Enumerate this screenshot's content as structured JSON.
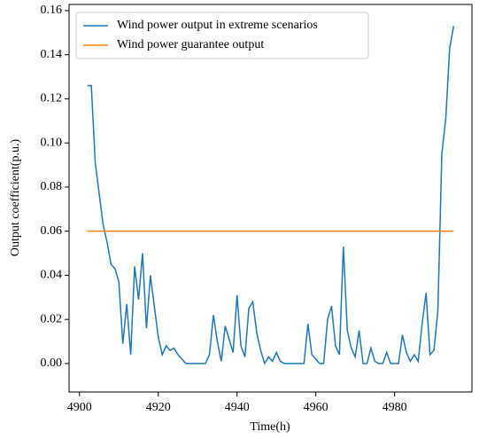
{
  "chart_data": {
    "type": "line",
    "xlabel": "Time(h)",
    "ylabel": "Output coefficient(p.u.)",
    "x": [
      4902,
      4903,
      4904,
      4905,
      4906,
      4907,
      4908,
      4909,
      4910,
      4911,
      4912,
      4913,
      4914,
      4915,
      4916,
      4917,
      4918,
      4919,
      4920,
      4921,
      4922,
      4923,
      4924,
      4925,
      4926,
      4927,
      4928,
      4929,
      4930,
      4931,
      4932,
      4933,
      4934,
      4935,
      4936,
      4937,
      4938,
      4939,
      4940,
      4941,
      4942,
      4943,
      4944,
      4945,
      4946,
      4947,
      4948,
      4949,
      4950,
      4951,
      4952,
      4953,
      4954,
      4955,
      4956,
      4957,
      4958,
      4959,
      4960,
      4961,
      4962,
      4963,
      4964,
      4965,
      4966,
      4967,
      4968,
      4969,
      4970,
      4971,
      4972,
      4973,
      4974,
      4975,
      4976,
      4977,
      4978,
      4979,
      4980,
      4981,
      4982,
      4983,
      4984,
      4985,
      4986,
      4987,
      4988,
      4989,
      4990,
      4991,
      4992,
      4993,
      4994,
      4995
    ],
    "series": [
      {
        "name": "Wind power output in extreme scenarios",
        "color": "#1f77b4",
        "values": [
          0.126,
          0.126,
          0.091,
          0.077,
          0.063,
          0.055,
          0.045,
          0.043,
          0.037,
          0.009,
          0.027,
          0.004,
          0.044,
          0.029,
          0.05,
          0.016,
          0.04,
          0.026,
          0.012,
          0.004,
          0.008,
          0.006,
          0.007,
          0.004,
          0.002,
          0,
          0,
          0,
          0,
          0,
          0,
          0.004,
          0.022,
          0.01,
          0.001,
          0.017,
          0.011,
          0.005,
          0.031,
          0.008,
          0.003,
          0.025,
          0.028,
          0.014,
          0.006,
          0,
          0.003,
          0.001,
          0.005,
          0.001,
          0,
          0,
          0,
          0,
          0,
          0,
          0.018,
          0.004,
          0.002,
          0,
          0,
          0.02,
          0.026,
          0.008,
          0.004,
          0.053,
          0.015,
          0.007,
          0.003,
          0.015,
          0,
          0,
          0.007,
          0.001,
          0,
          0,
          0.005,
          0,
          0,
          0,
          0.013,
          0.005,
          0.001,
          0.004,
          0.001,
          0.018,
          0.032,
          0.004,
          0.006,
          0.024,
          0.095,
          0.111,
          0.143,
          0.153
        ]
      },
      {
        "name": "Wind power guarantee output",
        "color": "#ff7f0e",
        "values": [
          0.06,
          0.06,
          0.06,
          0.06,
          0.06,
          0.06,
          0.06,
          0.06,
          0.06,
          0.06,
          0.06,
          0.06,
          0.06,
          0.06,
          0.06,
          0.06,
          0.06,
          0.06,
          0.06,
          0.06,
          0.06,
          0.06,
          0.06,
          0.06,
          0.06,
          0.06,
          0.06,
          0.06,
          0.06,
          0.06,
          0.06,
          0.06,
          0.06,
          0.06,
          0.06,
          0.06,
          0.06,
          0.06,
          0.06,
          0.06,
          0.06,
          0.06,
          0.06,
          0.06,
          0.06,
          0.06,
          0.06,
          0.06,
          0.06,
          0.06,
          0.06,
          0.06,
          0.06,
          0.06,
          0.06,
          0.06,
          0.06,
          0.06,
          0.06,
          0.06,
          0.06,
          0.06,
          0.06,
          0.06,
          0.06,
          0.06,
          0.06,
          0.06,
          0.06,
          0.06,
          0.06,
          0.06,
          0.06,
          0.06,
          0.06,
          0.06,
          0.06,
          0.06,
          0.06,
          0.06,
          0.06,
          0.06,
          0.06,
          0.06,
          0.06,
          0.06,
          0.06,
          0.06,
          0.06,
          0.06,
          0.06,
          0.06,
          0.06,
          0.06
        ]
      }
    ],
    "xlim": [
      4897.35,
      4999.65
    ],
    "xticks": [
      4900,
      4920,
      4940,
      4960,
      4980
    ],
    "ylim": [
      -0.0129,
      0.1628
    ],
    "yticks": [
      {
        "value": 0,
        "label": "0.00"
      },
      0.02,
      0.04,
      0.06,
      0.08,
      {
        "value": 0.1,
        "label": "0.10"
      },
      0.12,
      0.14,
      0.16
    ],
    "legend": "upper left"
  }
}
